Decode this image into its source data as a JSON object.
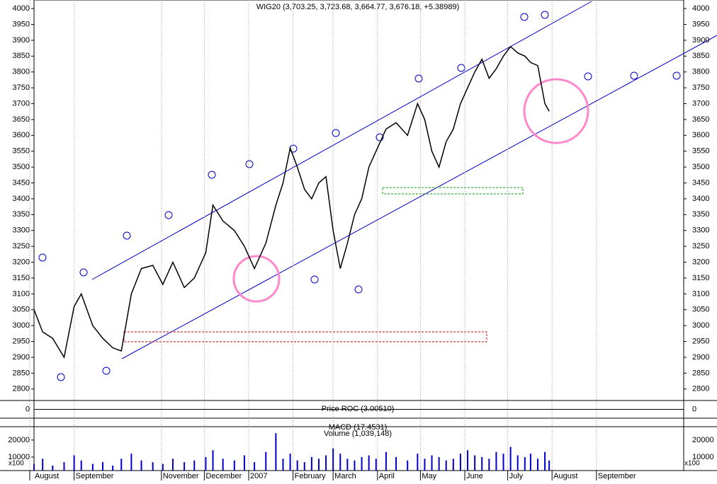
{
  "chart_data": [
    {
      "type": "line",
      "title": "WIG20 (3,703.25, 3,723.68, 3,664.77, 3,676.18, +5.38989)",
      "color": "#000000",
      "x": [
        3,
        9,
        16,
        24,
        31,
        36,
        44,
        51,
        58,
        64,
        71,
        78,
        86,
        93,
        100,
        108,
        115,
        123,
        128,
        135,
        143,
        150,
        157,
        165,
        172,
        177,
        182,
        187,
        192,
        197,
        202,
        207,
        212,
        217,
        222,
        227,
        232,
        237,
        242,
        249,
        256,
        264,
        271,
        276,
        281,
        286,
        291,
        296,
        301,
        306,
        311,
        316,
        321,
        326,
        331,
        336,
        341,
        346,
        350,
        355,
        360,
        363
      ],
      "values": [
        3050,
        2980,
        2960,
        2900,
        3060,
        3100,
        3000,
        2960,
        2930,
        2920,
        3100,
        3180,
        3190,
        3130,
        3200,
        3120,
        3150,
        3230,
        3380,
        3330,
        3300,
        3250,
        3180,
        3260,
        3380,
        3450,
        3560,
        3500,
        3430,
        3400,
        3450,
        3470,
        3300,
        3180,
        3260,
        3350,
        3400,
        3500,
        3550,
        3620,
        3640,
        3600,
        3700,
        3650,
        3550,
        3500,
        3580,
        3620,
        3700,
        3750,
        3800,
        3840,
        3780,
        3810,
        3850,
        3880,
        3860,
        3850,
        3830,
        3820,
        3700,
        3676
      ],
      "xlim": [
        0,
        457
      ],
      "xticks": [
        {
          "value": 0,
          "label": "August"
        },
        {
          "value": 31,
          "label": "September"
        },
        {
          "value": 92,
          "label": "November"
        },
        {
          "value": 122,
          "label": "December"
        },
        {
          "value": 153,
          "label": "2007"
        },
        {
          "value": 184,
          "label": "February"
        },
        {
          "value": 212,
          "label": "March"
        },
        {
          "value": 243,
          "label": "April"
        },
        {
          "value": 273,
          "label": "May"
        },
        {
          "value": 304,
          "label": "June"
        },
        {
          "value": 334,
          "label": "July"
        },
        {
          "value": 365,
          "label": "August"
        },
        {
          "value": 396,
          "label": "September"
        }
      ],
      "ylim": [
        2766,
        4027
      ],
      "yticks": [
        2800,
        2850,
        2900,
        2950,
        3000,
        3050,
        3100,
        3150,
        3200,
        3250,
        3300,
        3350,
        3400,
        3450,
        3500,
        3550,
        3600,
        3650,
        3700,
        3750,
        3800,
        3850,
        3900,
        3950,
        4000
      ]
    },
    {
      "type": "line",
      "title": "Price ROC (3.00510)",
      "ylim": [
        -10,
        10
      ],
      "yticks": [
        0
      ]
    },
    {
      "type": "line",
      "title": "MACD (17.4531)"
    },
    {
      "type": "bar",
      "title": "Volume (1,039,148)",
      "unit": "x100",
      "color": "#0000cc",
      "values": [
        6000,
        9000,
        5000,
        7000,
        11000,
        8000,
        6000,
        7000,
        5000,
        9000,
        12000,
        8000,
        7000,
        6000,
        9000,
        7000,
        8000,
        10000,
        14000,
        9000,
        8000,
        11000,
        7000,
        13000,
        24000,
        9000,
        12000,
        8000,
        7000,
        10000,
        9000,
        11000,
        15000,
        12000,
        9000,
        8000,
        10000,
        11000,
        9000,
        13000,
        10000,
        8000,
        12000,
        9000,
        11000,
        10000,
        8000,
        9000,
        12000,
        14000,
        11000,
        10000,
        9000,
        13000,
        12000,
        16000,
        11000,
        10000,
        12000,
        9000,
        13000,
        8000
      ],
      "ylim": [
        0,
        27000
      ],
      "yticks": [
        10000,
        20000
      ]
    }
  ]
}
